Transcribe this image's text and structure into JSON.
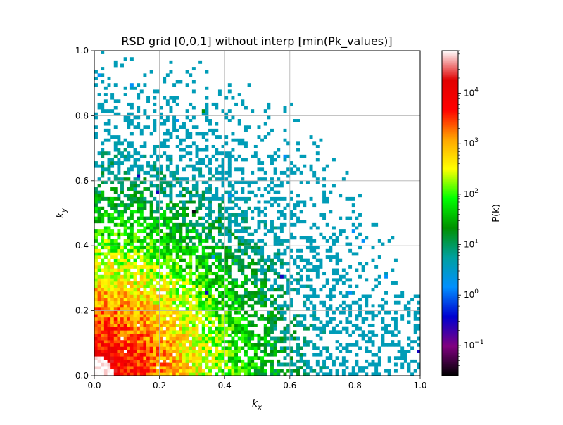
{
  "chart_data": {
    "type": "heatmap",
    "title": "RSD grid [0,0,1] without interp [min(Pk_values)]",
    "xlabel_base": "k",
    "xlabel_sub": "x",
    "ylabel_base": "k",
    "ylabel_sub": "y",
    "xlim": [
      0,
      1
    ],
    "ylim": [
      0,
      1
    ],
    "xticks": [
      "0.0",
      "0.2",
      "0.4",
      "0.6",
      "0.8",
      "1.0"
    ],
    "yticks": [
      "0.0",
      "0.2",
      "0.4",
      "0.6",
      "0.8",
      "1.0"
    ],
    "grid": true,
    "grid_cells": 100,
    "colorbar": {
      "label": "P(k)",
      "scale": "log",
      "range": [
        0.025,
        70000
      ],
      "ticks": [
        {
          "value": 0.1,
          "base": "10",
          "exp": "−1"
        },
        {
          "value": 1,
          "base": "10",
          "exp": "0"
        },
        {
          "value": 10,
          "base": "10",
          "exp": "1"
        },
        {
          "value": 100,
          "base": "10",
          "exp": "2"
        },
        {
          "value": 1000,
          "base": "10",
          "exp": "3"
        },
        {
          "value": 10000,
          "base": "10",
          "exp": "4"
        }
      ],
      "colors": [
        "#000000",
        "#800080",
        "#0000d0",
        "#0090ff",
        "#00a0a0",
        "#009000",
        "#00ff00",
        "#ffff00",
        "#ffa500",
        "#ff0000",
        "#e00000",
        "#ffffff"
      ]
    },
    "outliers": [
      {
        "x": 0.015,
        "y": 0.925,
        "p": 1.5
      },
      {
        "x": 0.115,
        "y": 0.895,
        "p": 1.5
      },
      {
        "x": 0.585,
        "y": 0.675,
        "p": 1.5
      },
      {
        "x": 0.795,
        "y": 0.445,
        "p": 1.5
      },
      {
        "x": 0.825,
        "y": 0.415,
        "p": 1.5
      },
      {
        "x": 0.895,
        "y": 0.305,
        "p": 1.5
      },
      {
        "x": 0.255,
        "y": 0.785,
        "p": 1.5
      },
      {
        "x": 0.135,
        "y": 0.615,
        "p": 0.3
      },
      {
        "x": 0.195,
        "y": 0.565,
        "p": 0.3
      },
      {
        "x": 0.575,
        "y": 0.305,
        "p": 0.3
      },
      {
        "x": 0.345,
        "y": 0.255,
        "p": 0.3
      },
      {
        "x": 0.305,
        "y": 0.505,
        "p": 0.03
      },
      {
        "x": 0.995,
        "y": 0.075,
        "p": 0.3
      },
      {
        "x": 0.415,
        "y": 0.555,
        "p": 1.5
      },
      {
        "x": 0.365,
        "y": 0.365,
        "p": 1.5
      },
      {
        "x": 0.785,
        "y": 0.255,
        "p": 1.5
      },
      {
        "x": 0.335,
        "y": 0.815,
        "p": 20
      }
    ]
  }
}
